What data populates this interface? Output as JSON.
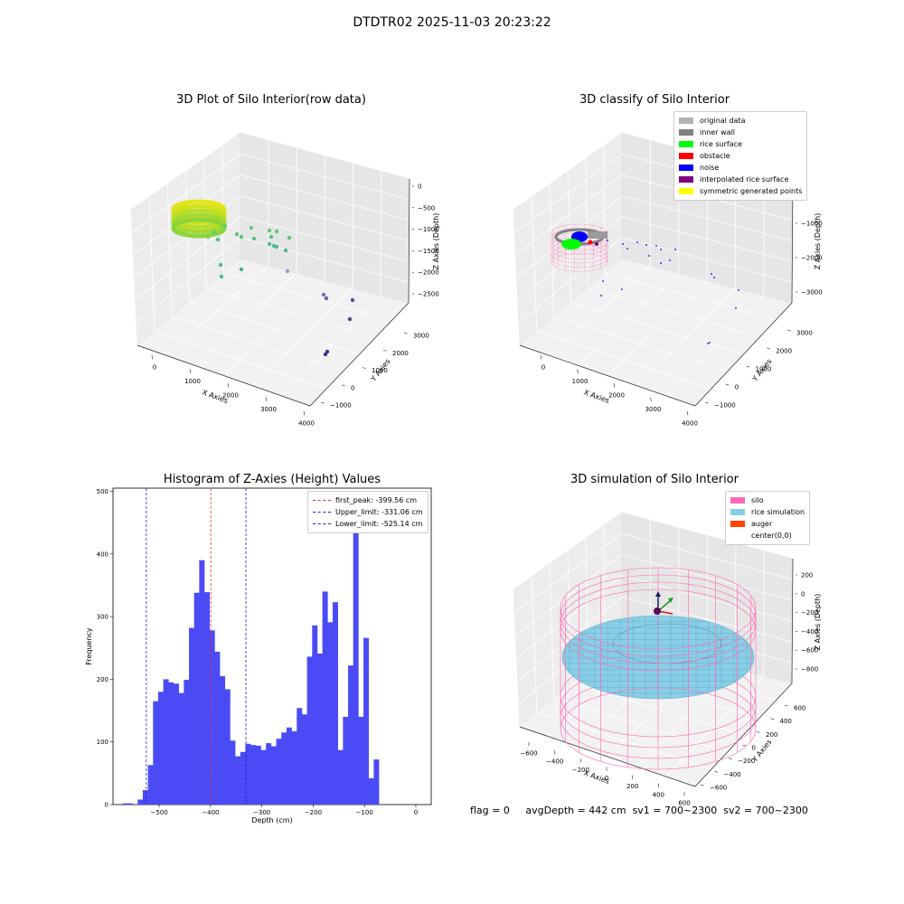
{
  "figure": {
    "suptitle": "DTDTR02 2025-11-03 20:23:22"
  },
  "footer": {
    "flag": "flag = 0",
    "avg": "avgDepth = 442 cm",
    "sv1": "sv1 = 700~2300",
    "sv2": "sv2 = 700~2300"
  },
  "colors": {
    "bar": "#4b4bf6",
    "peak": "#e03030",
    "limit": "#2020d0",
    "silo": "#ff69b4",
    "rice": "#87cee6",
    "auger": "#ff4500"
  },
  "chart_data": [
    {
      "type": "scatter",
      "title": "3D Plot of Silo Interior(row data)",
      "xlabel": "X Axies",
      "ylabel": "Y Axies",
      "zlabel": "Z Axies (Depth)",
      "xticks": [
        "0",
        "1000",
        "2000",
        "3000",
        "4000"
      ],
      "yticks": [
        "−1000",
        "0",
        "1000",
        "2000",
        "3000"
      ],
      "zticks": [
        "0",
        "−500",
        "−1000",
        "−1500",
        "−2000",
        "−2500"
      ],
      "colormap": "viridis (colored by depth)"
    },
    {
      "type": "scatter",
      "title": "3D classify of Silo Interior",
      "xlabel": "X Axies",
      "ylabel": "Y Axies",
      "zlabel": "Z Axies (Depth)",
      "xticks": [
        "0",
        "1000",
        "2000",
        "3000",
        "4000"
      ],
      "yticks": [
        "−1000",
        "0",
        "1000",
        "2000",
        "3000"
      ],
      "zticks": [
        "0",
        "−1000",
        "−2000",
        "−3000"
      ],
      "legend_position": "top-right",
      "legend": [
        {
          "label": "original data",
          "color": "#b3b3b3"
        },
        {
          "label": "inner wall",
          "color": "#808080"
        },
        {
          "label": "rice surface",
          "color": "#00ff00"
        },
        {
          "label": "obstacle",
          "color": "#ff0000"
        },
        {
          "label": "noise",
          "color": "#0000ff"
        },
        {
          "label": "interpolated rice surface",
          "color": "#800080"
        },
        {
          "label": "symmetric generated points",
          "color": "#ffff00"
        }
      ]
    },
    {
      "type": "bar",
      "title": "Histogram of Z-Axies (Height) Values",
      "xlabel": "Depth (cm)",
      "ylabel": "Frequency",
      "xlim": [
        -590,
        30
      ],
      "ylim": [
        0,
        505
      ],
      "xticks": [
        -500,
        -400,
        -300,
        -200,
        -100,
        0
      ],
      "xtick_labels": [
        "−500",
        "−400",
        "−300",
        "−200",
        "−100",
        "0"
      ],
      "yticks": [
        0,
        100,
        200,
        300,
        400,
        500
      ],
      "bin_start": -572,
      "bin_width": 10,
      "values": [
        2,
        2,
        0,
        8,
        23,
        63,
        165,
        180,
        200,
        195,
        193,
        178,
        199,
        282,
        338,
        390,
        339,
        278,
        244,
        205,
        184,
        102,
        77,
        84,
        97,
        95,
        94,
        87,
        98,
        93,
        105,
        115,
        123,
        117,
        154,
        144,
        236,
        286,
        241,
        340,
        291,
        323,
        87,
        140,
        222,
        462,
        140,
        266,
        42,
        72
      ],
      "vlines": [
        {
          "label": "first_peak: -399.56 cm",
          "x": -399.56,
          "color": "#e03030"
        },
        {
          "label": "Upper_limit: -331.06 cm",
          "x": -331.06,
          "color": "#2020d0"
        },
        {
          "label": "Lower_limit: -525.14 cm",
          "x": -525.14,
          "color": "#2020d0"
        }
      ],
      "legend_position": "top-right"
    },
    {
      "type": "scatter",
      "title": "3D simulation of Silo Interior",
      "xlabel": "X Axies",
      "ylabel": "Y Axies",
      "zlabel": "Z Axies (Depth)",
      "xticks": [
        "−600",
        "−400",
        "−200",
        "0",
        "200",
        "400",
        "600"
      ],
      "yticks": [
        "−600",
        "−400",
        "−200",
        "0",
        "200",
        "400",
        "600"
      ],
      "zticks": [
        "200",
        "0",
        "−200",
        "−400",
        "−600",
        "−800"
      ],
      "legend_position": "top-right",
      "legend": [
        {
          "label": "silo",
          "color": "#ff69b4"
        },
        {
          "label": "rice simulation",
          "color": "#87cee6"
        },
        {
          "label": "auger",
          "color": "#ff4500"
        },
        {
          "label": "center(0,0)",
          "color": "#ffffff"
        }
      ]
    }
  ]
}
